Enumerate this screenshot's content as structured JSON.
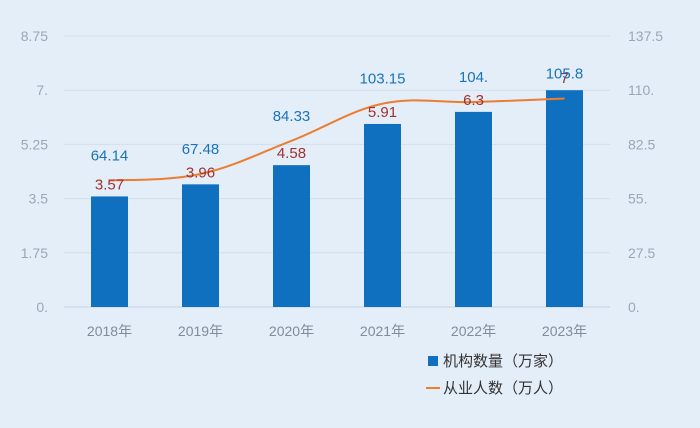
{
  "chart_data": {
    "type": "bar",
    "categories": [
      "2018年",
      "2019年",
      "2020年",
      "2021年",
      "2022年",
      "2023年"
    ],
    "series": [
      {
        "name": "机构数量（万家）",
        "type": "bar",
        "axis": "left",
        "values": [
          3.57,
          3.96,
          4.58,
          5.91,
          6.3,
          7
        ],
        "labels": [
          "3.57",
          "3.96",
          "4.58",
          "5.91",
          "6.3",
          "7"
        ],
        "color": "#1070c0"
      },
      {
        "name": "从业人数（万人）",
        "type": "line",
        "axis": "right",
        "values": [
          64.14,
          67.48,
          84.33,
          103.15,
          104,
          105.8
        ],
        "labels": [
          "64.14",
          "67.48",
          "84.33",
          "103.15",
          "104.",
          "105.8"
        ],
        "color": "#ed7d31"
      }
    ],
    "y_left": {
      "min": 0,
      "max": 8.75,
      "ticks": [
        0,
        1.75,
        3.5,
        5.25,
        7,
        8.75
      ],
      "tick_labels": [
        "0.",
        "1.75",
        "3.5",
        "5.25",
        "7.",
        "8.75"
      ]
    },
    "y_right": {
      "min": 0,
      "max": 137.5,
      "ticks": [
        0,
        27.5,
        55,
        82.5,
        110,
        137.5
      ],
      "tick_labels": [
        "0.",
        "27.5",
        "55.",
        "82.5",
        "110.",
        "137.5"
      ]
    },
    "grid": true,
    "legend_position": "bottom-right",
    "title": "",
    "xlabel": "",
    "ylabel": ""
  }
}
